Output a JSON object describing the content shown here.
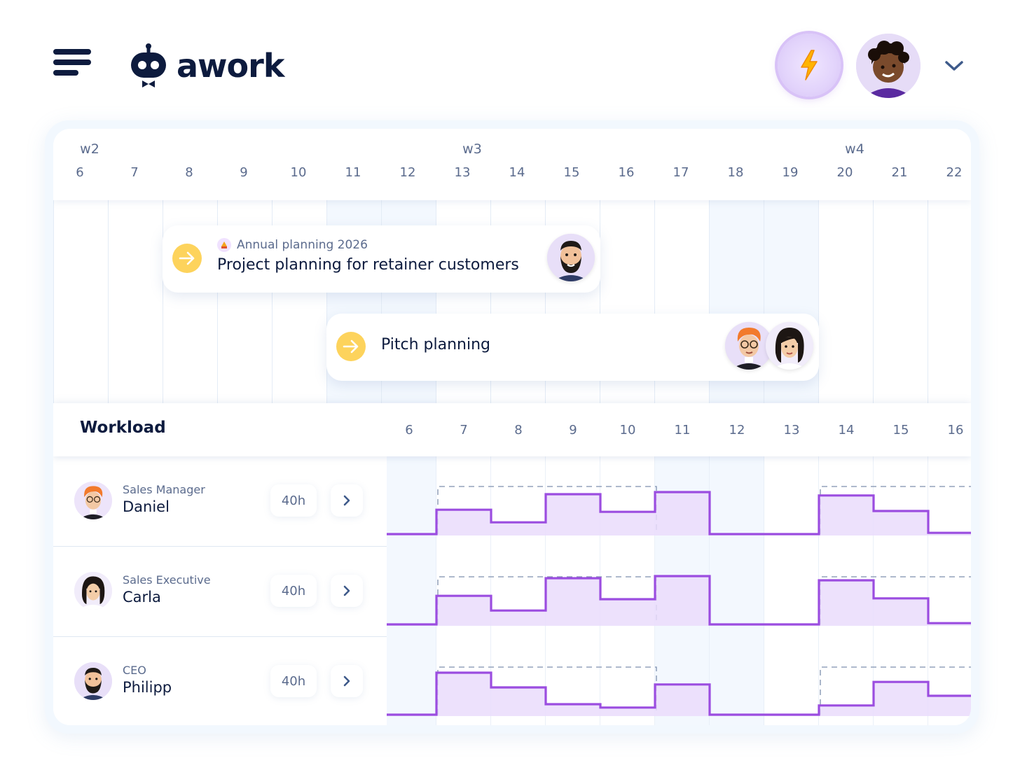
{
  "app": {
    "name": "awork"
  },
  "icons": {
    "menu": "menu-icon",
    "bolt": "lightning-bolt-icon",
    "chevron": "chevron-down-icon",
    "arrow": "arrow-right-icon",
    "next": "chevron-right-icon"
  },
  "colors": {
    "navy": "#0d1b3e",
    "muted": "#5b6b8d",
    "accent_yellow": "#fdd35c",
    "workload_line": "#9b4de0",
    "workload_fill": "#eadcfb"
  },
  "timeline": {
    "weeks": [
      {
        "label": "w2",
        "day_index": 0
      },
      {
        "label": "w3",
        "day_index": 7
      },
      {
        "label": "w4",
        "day_index": 14
      }
    ],
    "days": [
      "6",
      "7",
      "8",
      "9",
      "10",
      "11",
      "12",
      "13",
      "14",
      "15",
      "16",
      "17",
      "18",
      "19",
      "20",
      "21",
      "22"
    ],
    "weekend_day_indices": [
      5,
      6,
      12,
      13
    ]
  },
  "tasks": [
    {
      "project": "Annual planning 2026",
      "title": "Project planning for retainer customers",
      "start_day_index": 2,
      "end_day_index": 10,
      "assignees": [
        "man-with-beard-avatar"
      ]
    },
    {
      "project": "",
      "title": "Pitch planning",
      "start_day_index": 5,
      "end_day_index": 14,
      "assignees": [
        "man-with-orange-hair-avatar",
        "woman-with-dark-hair-avatar"
      ]
    }
  ],
  "workload": {
    "title": "Workload",
    "days": [
      "6",
      "7",
      "8",
      "9",
      "10",
      "11",
      "12",
      "13",
      "14",
      "15",
      "16"
    ],
    "people": [
      {
        "role": "Sales Manager",
        "name": "Daniel",
        "hours": "40h",
        "avatar": "man-with-orange-hair-avatar"
      },
      {
        "role": "Sales Executive",
        "name": "Carla",
        "hours": "40h",
        "avatar": "woman-with-dark-hair-avatar"
      },
      {
        "role": "CEO",
        "name": "Philipp",
        "hours": "40h",
        "avatar": "man-with-beard-avatar"
      }
    ]
  },
  "chart_data": {
    "type": "area",
    "title": "Workload",
    "x": [
      "6",
      "7",
      "8",
      "9",
      "10",
      "11",
      "12",
      "13",
      "14",
      "15",
      "16"
    ],
    "ylim": [
      0,
      1
    ],
    "capacity": 1,
    "series": [
      {
        "name": "Daniel",
        "values": [
          0,
          0.58,
          0.28,
          0.95,
          0.53,
          1.0,
          0,
          0,
          0.92,
          0.55,
          0.03
        ]
      },
      {
        "name": "Carla",
        "values": [
          0,
          0.68,
          0.33,
          1.1,
          0.6,
          1.15,
          0,
          0,
          1.05,
          0.62,
          0.03
        ]
      },
      {
        "name": "Philipp",
        "values": [
          0,
          1.0,
          0.65,
          0.25,
          0.17,
          0.72,
          0,
          0,
          0.22,
          0.78,
          0.45
        ]
      }
    ]
  }
}
